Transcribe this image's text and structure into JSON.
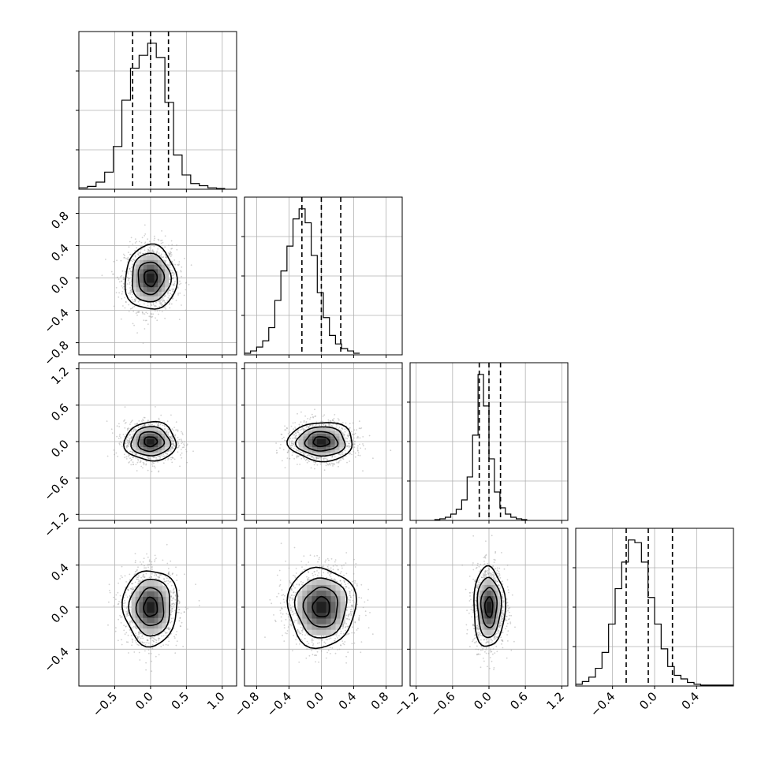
{
  "chart_data": {
    "type": "corner",
    "grid": true,
    "parameters": [
      {
        "index": 0,
        "range": [
          -1.0,
          1.2
        ],
        "ticks": [
          -0.5,
          0.0,
          0.5,
          1.0
        ],
        "tick_labels": [
          "−0.5",
          "0.0",
          "0.5",
          "1.0"
        ],
        "quantiles": [
          -0.25,
          0.0,
          0.25
        ],
        "hist": {
          "bin_start": -1.0,
          "bin_width": 0.12,
          "counts": [
            2,
            4,
            10,
            24,
            60,
            125,
            170,
            188,
            205,
            185,
            122,
            48,
            20,
            8,
            5,
            2,
            1
          ]
        }
      },
      {
        "index": 1,
        "range": [
          -0.95,
          1.0
        ],
        "ticks": [
          -0.8,
          -0.4,
          0.0,
          0.4,
          0.8
        ],
        "tick_labels": [
          "−0.8",
          "−0.4",
          "0.0",
          "0.4",
          "0.8"
        ],
        "quantiles": [
          -0.24,
          0.0,
          0.24
        ],
        "hist": {
          "bin_start": -0.95,
          "bin_width": 0.075,
          "counts": [
            2,
            5,
            10,
            18,
            35,
            70,
            108,
            140,
            175,
            188,
            170,
            128,
            80,
            48,
            25,
            14,
            8,
            5,
            2
          ]
        }
      },
      {
        "index": 2,
        "range": [
          -1.3,
          1.3
        ],
        "ticks": [
          -1.2,
          -0.6,
          0.0,
          0.6,
          1.2
        ],
        "tick_labels": [
          "−1.2",
          "−0.6",
          "0.0",
          "0.6",
          "1.2"
        ],
        "quantiles": [
          -0.16,
          0.0,
          0.19
        ],
        "hist": {
          "bin_start": -0.9,
          "bin_width": 0.09,
          "counts": [
            1,
            2,
            4,
            8,
            14,
            26,
            55,
            108,
            185,
            145,
            78,
            36,
            16,
            8,
            4,
            2,
            1
          ]
        }
      },
      {
        "index": 3,
        "range": [
          -0.75,
          0.75
        ],
        "ticks": [
          -0.4,
          0.0,
          0.4
        ],
        "tick_labels": [
          "−0.4",
          "0.0",
          "0.4"
        ],
        "quantiles": [
          -0.27,
          -0.06,
          0.17
        ],
        "hist": {
          "bin_start": -0.75,
          "bin_width": 0.0625,
          "counts": [
            2,
            5,
            10,
            20,
            38,
            70,
            110,
            140,
            165,
            162,
            140,
            100,
            70,
            42,
            22,
            12,
            8,
            4,
            2,
            1,
            1,
            1,
            1,
            1
          ]
        }
      }
    ],
    "panels_2d": [
      {
        "row": 1,
        "col": 0,
        "sx": 0.18,
        "sy": 0.2,
        "rho": 0.0
      },
      {
        "row": 2,
        "col": 0,
        "sx": 0.18,
        "sy": 0.16,
        "rho": 0.0
      },
      {
        "row": 2,
        "col": 1,
        "sx": 0.2,
        "sy": 0.16,
        "rho": 0.0
      },
      {
        "row": 3,
        "col": 0,
        "sx": 0.19,
        "sy": 0.18,
        "rho": 0.0
      },
      {
        "row": 3,
        "col": 1,
        "sx": 0.21,
        "sy": 0.19,
        "rho": 0.0
      },
      {
        "row": 3,
        "col": 2,
        "sx": 0.13,
        "sy": 0.19,
        "rho": 0.0
      }
    ],
    "contour_levels": [
      0.5,
      1.0,
      1.5,
      2.0
    ]
  }
}
